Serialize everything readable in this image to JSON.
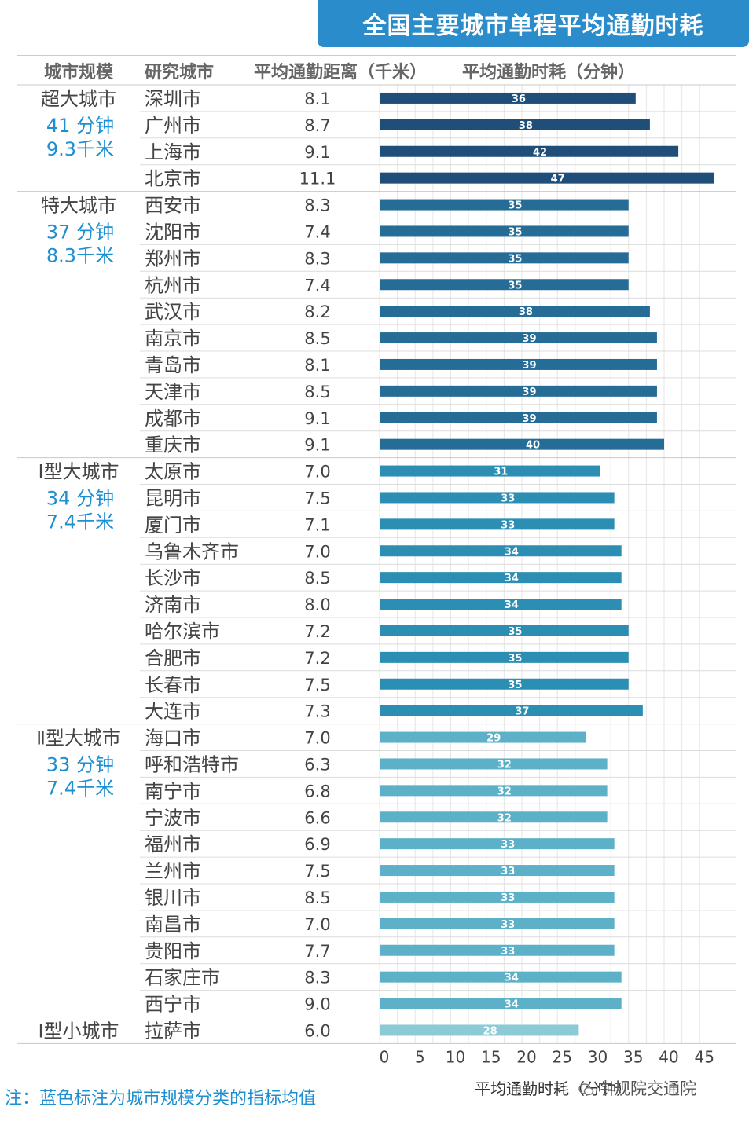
{
  "title": "全国主要城市单程平均通勤时耗",
  "headers": {
    "scale": "城市规模",
    "city": "研究城市",
    "distance": "平均通勤距离（千米）",
    "time": "平均通勤时耗（分钟）"
  },
  "groups": [
    {
      "name": "超大城市",
      "avg_time": "41 分钟",
      "avg_distance": "9.3千米",
      "color": "#1f4e79"
    },
    {
      "name": "特大城市",
      "avg_time": "37 分钟",
      "avg_distance": "8.3千米",
      "color": "#256d96"
    },
    {
      "name": "Ⅰ型大城市",
      "avg_time": "34 分钟",
      "avg_distance": "7.4千米",
      "color": "#2d8eb3"
    },
    {
      "name": "Ⅱ型大城市",
      "avg_time": "33 分钟",
      "avg_distance": "7.4千米",
      "color": "#5cb0c7"
    },
    {
      "name": "Ⅰ型小城市",
      "avg_time": "",
      "avg_distance": "",
      "color": "#8ccbd6"
    }
  ],
  "chart_data": {
    "type": "bar",
    "orientation": "horizontal",
    "title": "全国主要城市单程平均通勤时耗",
    "xlabel": "平均通勤时耗（分钟）",
    "xlim": [
      0,
      47
    ],
    "xticks": [
      0,
      5,
      10,
      15,
      20,
      25,
      30,
      35,
      40,
      45
    ],
    "grid": true,
    "rows": [
      {
        "group": 0,
        "city": "深圳市",
        "distance": "8.1",
        "time": 36
      },
      {
        "group": 0,
        "city": "广州市",
        "distance": "8.7",
        "time": 38
      },
      {
        "group": 0,
        "city": "上海市",
        "distance": "9.1",
        "time": 42
      },
      {
        "group": 0,
        "city": "北京市",
        "distance": "11.1",
        "time": 47
      },
      {
        "group": 1,
        "city": "西安市",
        "distance": "8.3",
        "time": 35
      },
      {
        "group": 1,
        "city": "沈阳市",
        "distance": "7.4",
        "time": 35
      },
      {
        "group": 1,
        "city": "郑州市",
        "distance": "8.3",
        "time": 35
      },
      {
        "group": 1,
        "city": "杭州市",
        "distance": "7.4",
        "time": 35
      },
      {
        "group": 1,
        "city": "武汉市",
        "distance": "8.2",
        "time": 38
      },
      {
        "group": 1,
        "city": "南京市",
        "distance": "8.5",
        "time": 39
      },
      {
        "group": 1,
        "city": "青岛市",
        "distance": "8.1",
        "time": 39
      },
      {
        "group": 1,
        "city": "天津市",
        "distance": "8.5",
        "time": 39
      },
      {
        "group": 1,
        "city": "成都市",
        "distance": "9.1",
        "time": 39
      },
      {
        "group": 1,
        "city": "重庆市",
        "distance": "9.1",
        "time": 40
      },
      {
        "group": 2,
        "city": "太原市",
        "distance": "7.0",
        "time": 31
      },
      {
        "group": 2,
        "city": "昆明市",
        "distance": "7.5",
        "time": 33
      },
      {
        "group": 2,
        "city": "厦门市",
        "distance": "7.1",
        "time": 33
      },
      {
        "group": 2,
        "city": "乌鲁木齐市",
        "distance": "7.0",
        "time": 34
      },
      {
        "group": 2,
        "city": "长沙市",
        "distance": "8.5",
        "time": 34
      },
      {
        "group": 2,
        "city": "济南市",
        "distance": "8.0",
        "time": 34
      },
      {
        "group": 2,
        "city": "哈尔滨市",
        "distance": "7.2",
        "time": 35
      },
      {
        "group": 2,
        "city": "合肥市",
        "distance": "7.2",
        "time": 35
      },
      {
        "group": 2,
        "city": "长春市",
        "distance": "7.5",
        "time": 35
      },
      {
        "group": 2,
        "city": "大连市",
        "distance": "7.3",
        "time": 37
      },
      {
        "group": 3,
        "city": "海口市",
        "distance": "7.0",
        "time": 29
      },
      {
        "group": 3,
        "city": "呼和浩特市",
        "distance": "6.3",
        "time": 32
      },
      {
        "group": 3,
        "city": "南宁市",
        "distance": "6.8",
        "time": 32
      },
      {
        "group": 3,
        "city": "宁波市",
        "distance": "6.6",
        "time": 32
      },
      {
        "group": 3,
        "city": "福州市",
        "distance": "6.9",
        "time": 33
      },
      {
        "group": 3,
        "city": "兰州市",
        "distance": "7.5",
        "time": 33
      },
      {
        "group": 3,
        "city": "银川市",
        "distance": "8.5",
        "time": 33
      },
      {
        "group": 3,
        "city": "南昌市",
        "distance": "7.0",
        "time": 33
      },
      {
        "group": 3,
        "city": "贵阳市",
        "distance": "7.7",
        "time": 33
      },
      {
        "group": 3,
        "city": "石家庄市",
        "distance": "8.3",
        "time": 34
      },
      {
        "group": 3,
        "city": "西宁市",
        "distance": "9.0",
        "time": 34
      },
      {
        "group": 4,
        "city": "拉萨市",
        "distance": "6.0",
        "time": 28
      }
    ]
  },
  "footer": {
    "note": "注：蓝色标注为城市规模分类的指标均值",
    "axis_title": "平均通勤时耗（分钟）",
    "watermark": "中规院交通院"
  },
  "colors": {
    "title_bg": "#2b8ccc",
    "group_stat_text": "#1e8fd1",
    "grid": "#e6e6e6"
  }
}
